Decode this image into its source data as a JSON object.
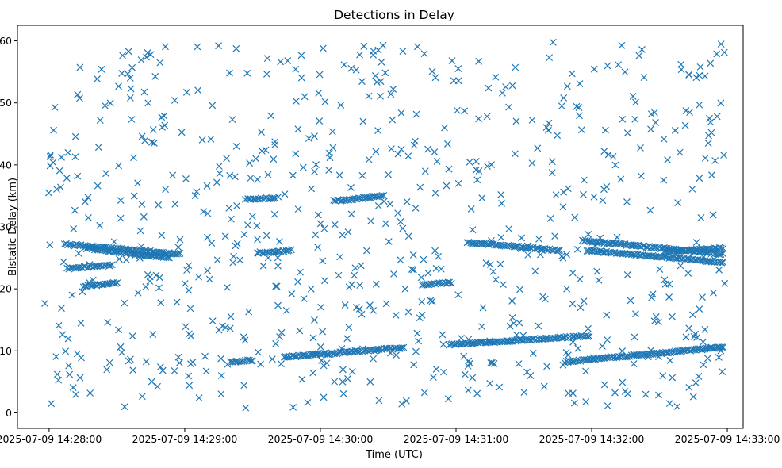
{
  "chart_data": {
    "type": "scatter",
    "title": "Detections in Delay",
    "xlabel": "Time (UTC)",
    "ylabel": "Bistatic Delay (km)",
    "x_axis_kind": "datetime",
    "xlim": [
      "2025-07-09 14:27:46",
      "2025-07-09 14:33:07"
    ],
    "ylim": [
      -2.5,
      62.5
    ],
    "x_ticks": [
      "2025-07-09 14:28:00",
      "2025-07-09 14:29:00",
      "2025-07-09 14:30:00",
      "2025-07-09 14:31:00",
      "2025-07-09 14:32:00",
      "2025-07-09 14:33:00"
    ],
    "y_ticks": [
      0,
      10,
      20,
      30,
      40,
      50,
      60
    ],
    "marker": "x",
    "color": "#1f77b4",
    "grid": false,
    "tracks": [
      {
        "start": "2025-07-09 14:28:07",
        "end": "2025-07-09 14:28:58",
        "y_start": 27.2,
        "y_end": 25.6
      },
      {
        "start": "2025-07-09 14:28:16",
        "end": "2025-07-09 14:28:53",
        "y_start": 26.6,
        "y_end": 25.0
      },
      {
        "start": "2025-07-09 14:28:08",
        "end": "2025-07-09 14:28:28",
        "y_start": 23.3,
        "y_end": 23.8
      },
      {
        "start": "2025-07-09 14:28:15",
        "end": "2025-07-09 14:28:30",
        "y_start": 20.4,
        "y_end": 21.0
      },
      {
        "start": "2025-07-09 14:29:27",
        "end": "2025-07-09 14:29:40",
        "y_start": 34.4,
        "y_end": 34.7
      },
      {
        "start": "2025-07-09 14:29:32",
        "end": "2025-07-09 14:29:47",
        "y_start": 25.8,
        "y_end": 26.2
      },
      {
        "start": "2025-07-09 14:30:06",
        "end": "2025-07-09 14:30:28",
        "y_start": 34.2,
        "y_end": 35.0
      },
      {
        "start": "2025-07-09 14:29:20",
        "end": "2025-07-09 14:29:30",
        "y_start": 8.2,
        "y_end": 8.5
      },
      {
        "start": "2025-07-09 14:29:44",
        "end": "2025-07-09 14:30:37",
        "y_start": 9.0,
        "y_end": 10.5
      },
      {
        "start": "2025-07-09 14:30:45",
        "end": "2025-07-09 14:30:58",
        "y_start": 20.6,
        "y_end": 21.0
      },
      {
        "start": "2025-07-09 14:30:57",
        "end": "2025-07-09 14:31:59",
        "y_start": 11.0,
        "y_end": 12.4
      },
      {
        "start": "2025-07-09 14:31:05",
        "end": "2025-07-09 14:31:46",
        "y_start": 27.5,
        "y_end": 26.2
      },
      {
        "start": "2025-07-09 14:31:56",
        "end": "2025-07-09 14:32:58",
        "y_start": 27.8,
        "y_end": 25.6
      },
      {
        "start": "2025-07-09 14:31:58",
        "end": "2025-07-09 14:32:58",
        "y_start": 26.2,
        "y_end": 24.3
      },
      {
        "start": "2025-07-09 14:32:32",
        "end": "2025-07-09 14:32:58",
        "y_start": 26.0,
        "y_end": 26.6
      },
      {
        "start": "2025-07-09 14:31:48",
        "end": "2025-07-09 14:32:58",
        "y_start": 8.2,
        "y_end": 10.6
      }
    ],
    "scattered_detections_count": 720,
    "scattered_time_range": [
      "2025-07-09 14:27:58",
      "2025-07-09 14:32:59"
    ],
    "scattered_delay_range": [
      0.8,
      59.8
    ]
  }
}
